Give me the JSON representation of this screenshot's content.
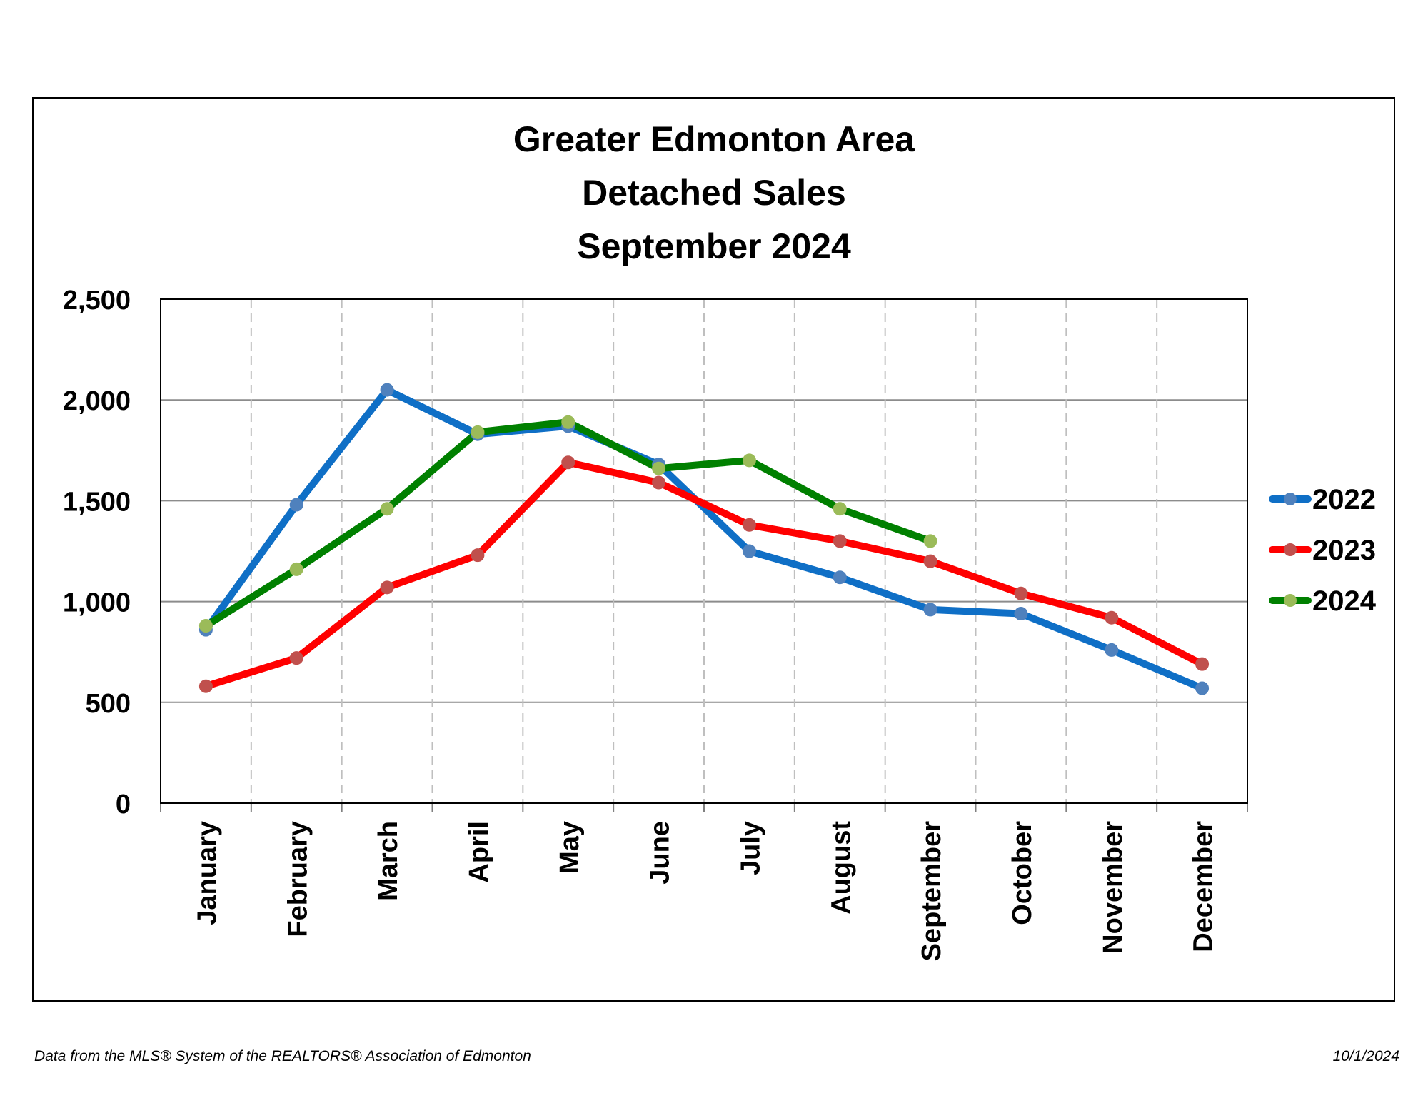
{
  "chart_data": {
    "type": "line",
    "title_lines": [
      "Greater Edmonton Area",
      "Detached Sales",
      "September 2024"
    ],
    "categories": [
      "January",
      "February",
      "March",
      "April",
      "May",
      "June",
      "July",
      "August",
      "September",
      "October",
      "November",
      "December"
    ],
    "ylim": [
      0,
      2500
    ],
    "yticks": [
      0,
      500,
      1000,
      1500,
      2000,
      2500
    ],
    "ytick_labels": [
      "0",
      "500",
      "1,000",
      "1,500",
      "2,000",
      "2,500"
    ],
    "grid": true,
    "legend_position": "right",
    "series": [
      {
        "name": "2022",
        "color": "#0f6fc6",
        "marker_color": "#4f81bd",
        "values": [
          860,
          1480,
          2050,
          1830,
          1870,
          1680,
          1250,
          1120,
          960,
          940,
          760,
          570
        ]
      },
      {
        "name": "2023",
        "color": "#ff0000",
        "marker_color": "#c0504d",
        "values": [
          580,
          720,
          1070,
          1230,
          1690,
          1590,
          1380,
          1300,
          1200,
          1040,
          920,
          690
        ]
      },
      {
        "name": "2024",
        "color": "#008000",
        "marker_color": "#9bbb59",
        "values": [
          880,
          1160,
          1460,
          1840,
          1890,
          1660,
          1700,
          1460,
          1300,
          null,
          null,
          null
        ]
      }
    ]
  },
  "footer": {
    "source": "Data from the MLS® System of the REALTORS® Association of Edmonton",
    "date": "10/1/2024"
  }
}
